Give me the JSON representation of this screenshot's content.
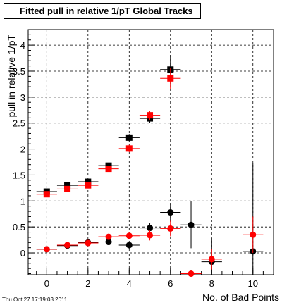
{
  "chart_data": {
    "type": "scatter",
    "title": "Fitted pull in relative 1/pT  Global Tracks",
    "xlabel": "No. of Bad Points",
    "ylabel": "pull in relative 1/pT",
    "xlim": [
      -0.9,
      11.0
    ],
    "ylim": [
      -0.42,
      4.3
    ],
    "x_ticks": [
      0,
      2,
      4,
      6,
      8,
      10
    ],
    "x_tick_labels": [
      "0",
      "2",
      "4",
      "6",
      "8",
      "10"
    ],
    "y_ticks": [
      0,
      0.5,
      1,
      1.5,
      2,
      2.5,
      3,
      3.5,
      4
    ],
    "y_tick_labels": [
      "0",
      "0.5",
      "1",
      "1.5",
      "2",
      "2.5",
      "3",
      "3.5",
      "4"
    ],
    "grid": true,
    "legend": null,
    "series": [
      {
        "marker": "square",
        "color": "#000000",
        "points": [
          {
            "x": 0,
            "y": 1.18,
            "ex": 0.5,
            "ey": 0.04
          },
          {
            "x": 1,
            "y": 1.3,
            "ex": 0.5,
            "ey": 0.04
          },
          {
            "x": 2,
            "y": 1.37,
            "ex": 0.5,
            "ey": 0.05
          },
          {
            "x": 3,
            "y": 1.68,
            "ex": 0.5,
            "ey": 0.05
          },
          {
            "x": 4,
            "y": 2.22,
            "ex": 0.5,
            "ey": 0.07
          },
          {
            "x": 5,
            "y": 2.59,
            "ex": 0.5,
            "ey": 0.09
          },
          {
            "x": 6,
            "y": 3.53,
            "ex": 0.5,
            "ey": 0.28
          }
        ]
      },
      {
        "marker": "square",
        "color": "#ff0000",
        "points": [
          {
            "x": 0,
            "y": 1.13,
            "ex": 0.5,
            "ey": 0.04
          },
          {
            "x": 1,
            "y": 1.23,
            "ex": 0.5,
            "ey": 0.04
          },
          {
            "x": 2,
            "y": 1.3,
            "ex": 0.5,
            "ey": 0.05
          },
          {
            "x": 3,
            "y": 1.62,
            "ex": 0.5,
            "ey": 0.05
          },
          {
            "x": 4,
            "y": 2.01,
            "ex": 0.5,
            "ey": 0.07
          },
          {
            "x": 5,
            "y": 2.65,
            "ex": 0.5,
            "ey": 0.09
          },
          {
            "x": 6,
            "y": 3.36,
            "ex": 0.5,
            "ey": 0.2
          }
        ]
      },
      {
        "marker": "circle",
        "color": "#000000",
        "points": [
          {
            "x": 0,
            "y": 0.07,
            "ex": 0.5,
            "ey": 0.03
          },
          {
            "x": 1,
            "y": 0.14,
            "ex": 0.5,
            "ey": 0.03
          },
          {
            "x": 2,
            "y": 0.2,
            "ex": 0.5,
            "ey": 0.04
          },
          {
            "x": 3,
            "y": 0.21,
            "ex": 0.5,
            "ey": 0.05
          },
          {
            "x": 4,
            "y": 0.15,
            "ex": 0.5,
            "ey": 0.07
          },
          {
            "x": 5,
            "y": 0.48,
            "ex": 0.5,
            "ey": 0.1
          },
          {
            "x": 6,
            "y": 0.78,
            "ex": 0.5,
            "ey": 0.18
          },
          {
            "x": 7,
            "y": 0.54,
            "ex": 0.5,
            "ey": 0.45
          },
          {
            "x": 8,
            "y": -0.17,
            "ex": 0.5,
            "ey": 0.45
          },
          {
            "x": 10,
            "y": 0.03,
            "ex": 0.5,
            "ey": 1.7
          }
        ]
      },
      {
        "marker": "circle",
        "color": "#ff0000",
        "points": [
          {
            "x": 0,
            "y": 0.07,
            "ex": 0.5,
            "ey": 0.03
          },
          {
            "x": 1,
            "y": 0.15,
            "ex": 0.5,
            "ey": 0.03
          },
          {
            "x": 2,
            "y": 0.19,
            "ex": 0.5,
            "ey": 0.04
          },
          {
            "x": 3,
            "y": 0.31,
            "ex": 0.5,
            "ey": 0.05
          },
          {
            "x": 4,
            "y": 0.33,
            "ex": 0.5,
            "ey": 0.07
          },
          {
            "x": 5,
            "y": 0.34,
            "ex": 0.5,
            "ey": 0.1
          },
          {
            "x": 6,
            "y": 0.47,
            "ex": 0.5,
            "ey": 0.15
          },
          {
            "x": 7,
            "y": -0.4,
            "ex": 0.5,
            "ey": 0.05
          },
          {
            "x": 8,
            "y": -0.12,
            "ex": 0.5,
            "ey": 0.2
          },
          {
            "x": 10,
            "y": 0.35,
            "ex": 0.5,
            "ey": 0.35
          }
        ]
      }
    ]
  },
  "footer": {
    "timestamp": "Thu Oct 27 17:19:03 2011"
  }
}
